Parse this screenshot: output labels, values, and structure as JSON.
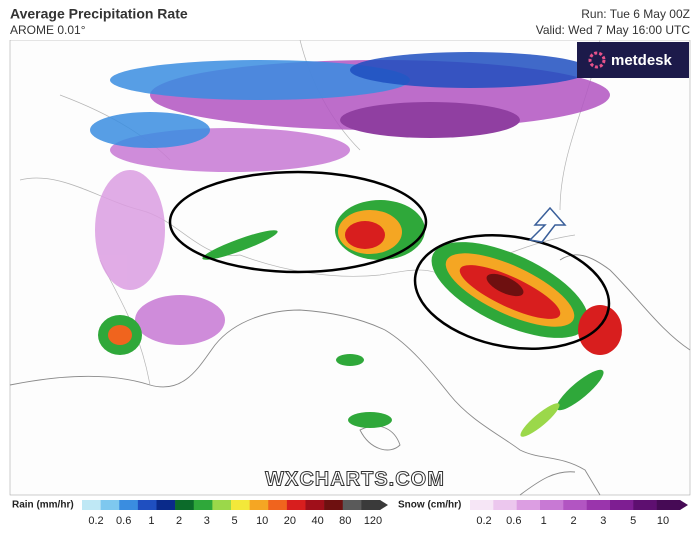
{
  "header": {
    "title": "Average Precipitation Rate",
    "model": "AROME 0.01°",
    "run": "Run: Tue 6 May 00Z",
    "valid": "Valid: Wed 7 May 16:00 UTC"
  },
  "logo": "metdesk",
  "watermark": "WXCHARTS.COM",
  "legend": {
    "rain": {
      "label": "Rain (mm/hr)",
      "ticks": [
        0.2,
        0.6,
        1,
        2,
        3,
        5,
        10,
        20,
        40,
        80,
        120
      ],
      "colors": [
        "#bfe8f5",
        "#7ec8ef",
        "#3a8de0",
        "#1f4fc0",
        "#0a2a8a",
        "#0c6b2a",
        "#2fa83a",
        "#9bd84a",
        "#f3e83a",
        "#f5a623",
        "#f0641e",
        "#d81e1e",
        "#a00f1a",
        "#6e1010",
        "#5a5a5a",
        "#3a3a3a"
      ]
    },
    "snow": {
      "label": "Snow (cm/hr)",
      "ticks": [
        0.2,
        0.6,
        1,
        2,
        3,
        5,
        10
      ],
      "colors": [
        "#f6e6f6",
        "#ecc7ee",
        "#dc9ee2",
        "#c879d4",
        "#b255c2",
        "#9a35ac",
        "#7e1e92",
        "#5e0f70",
        "#460a55"
      ]
    }
  }
}
